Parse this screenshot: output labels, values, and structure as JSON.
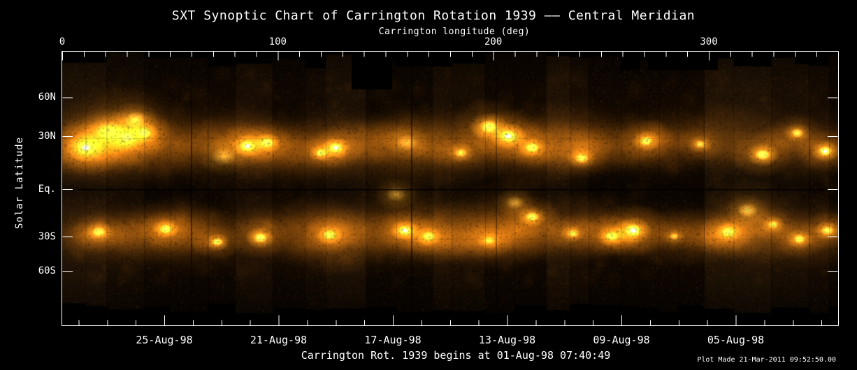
{
  "figure": {
    "title": "SXT Synoptic Chart of Carrington Rotation 1939 —— Central Meridian",
    "footer": "Carrington Rot. 1939 begins at 01-Aug-98 07:40:49",
    "plot_made": "Plot Made 21-Mar-2011 09:52:50.00"
  },
  "palette": {
    "background": "#000000",
    "axis": "#ffffff",
    "text": "#ffffff",
    "solar_base": "#100802",
    "solar_dim": "#6b3c08",
    "solar_mid": "#c87d14",
    "solar_bright": "#f5b942",
    "solar_core": "#fff3d0"
  },
  "chart_data": {
    "type": "heatmap",
    "title": "SXT Synoptic Chart of Carrington Rotation 1939 —— Central Meridian",
    "description": "Full-surface soft X-ray synoptic mosaic for Carrington rotation 1939; bright orange-gold patches are coronal active regions on a dark background, with a thin dark seam line along the solar equator and vertical seams between daily mosaic strips.",
    "x_axis_top": {
      "label": "Carrington longitude (deg)",
      "range": [
        0,
        360
      ],
      "major_ticks": [
        0,
        100,
        200,
        300
      ],
      "minor_tick_step": 10
    },
    "y_axis": {
      "label": "Solar Latitude",
      "ticks": [
        {
          "label": "60N",
          "lat": 60
        },
        {
          "label": "30N",
          "lat": 30
        },
        {
          "label": "Eq.",
          "lat": 0
        },
        {
          "label": "30S",
          "lat": -30
        },
        {
          "label": "60S",
          "lat": -60
        }
      ]
    },
    "x_axis_bottom": {
      "labels": [
        "25-Aug-98",
        "21-Aug-98",
        "17-Aug-98",
        "13-Aug-98",
        "09-Aug-98",
        "05-Aug-98"
      ],
      "minor_tick_interval_days": 1,
      "major_tick_interval_days": 4
    },
    "rotation_start": "01-Aug-98 07:40:49",
    "activity_bands": [
      {
        "hemisphere": "N",
        "lat_center": 25,
        "lat_spread": 8
      },
      {
        "hemisphere": "S",
        "lat_center": -28,
        "lat_spread": 7
      }
    ],
    "active_regions": [
      {
        "lon": 11,
        "lat": 23,
        "size": 16,
        "intensity": 1.0
      },
      {
        "lon": 22,
        "lat": 33,
        "size": 26,
        "intensity": 0.5
      },
      {
        "lon": 34,
        "lat": 41,
        "size": 20,
        "intensity": 0.5
      },
      {
        "lon": 30,
        "lat": 29,
        "size": 16,
        "intensity": 0.75
      },
      {
        "lon": 38,
        "lat": 32,
        "size": 12,
        "intensity": 0.8
      },
      {
        "lon": 75,
        "lat": 18,
        "size": 22,
        "intensity": 0.4
      },
      {
        "lon": 86,
        "lat": 24,
        "size": 13,
        "intensity": 0.9
      },
      {
        "lon": 95,
        "lat": 26,
        "size": 11,
        "intensity": 0.85
      },
      {
        "lon": 120,
        "lat": 20,
        "size": 10,
        "intensity": 0.7
      },
      {
        "lon": 127,
        "lat": 23,
        "size": 12,
        "intensity": 0.9
      },
      {
        "lon": 160,
        "lat": 26,
        "size": 20,
        "intensity": 0.35
      },
      {
        "lon": 185,
        "lat": 20,
        "size": 11,
        "intensity": 0.6
      },
      {
        "lon": 198,
        "lat": 36,
        "size": 16,
        "intensity": 0.85
      },
      {
        "lon": 207,
        "lat": 30,
        "size": 15,
        "intensity": 0.95
      },
      {
        "lon": 218,
        "lat": 23,
        "size": 12,
        "intensity": 0.8
      },
      {
        "lon": 241,
        "lat": 17,
        "size": 12,
        "intensity": 0.7
      },
      {
        "lon": 271,
        "lat": 27,
        "size": 12,
        "intensity": 0.75
      },
      {
        "lon": 296,
        "lat": 25,
        "size": 10,
        "intensity": 0.6
      },
      {
        "lon": 325,
        "lat": 19,
        "size": 13,
        "intensity": 0.85
      },
      {
        "lon": 341,
        "lat": 32,
        "size": 11,
        "intensity": 0.65
      },
      {
        "lon": 354,
        "lat": 21,
        "size": 12,
        "intensity": 0.9
      },
      {
        "lon": 17,
        "lat": -27,
        "size": 12,
        "intensity": 0.7
      },
      {
        "lon": 48,
        "lat": -25,
        "size": 11,
        "intensity": 0.8
      },
      {
        "lon": 72,
        "lat": -34,
        "size": 10,
        "intensity": 0.8
      },
      {
        "lon": 92,
        "lat": -31,
        "size": 12,
        "intensity": 0.85
      },
      {
        "lon": 124,
        "lat": -29,
        "size": 11,
        "intensity": 0.7
      },
      {
        "lon": 155,
        "lat": -3,
        "size": 18,
        "intensity": 0.45
      },
      {
        "lon": 159,
        "lat": -26,
        "size": 12,
        "intensity": 0.9
      },
      {
        "lon": 170,
        "lat": -30,
        "size": 11,
        "intensity": 0.7
      },
      {
        "lon": 198,
        "lat": -33,
        "size": 10,
        "intensity": 0.5
      },
      {
        "lon": 210,
        "lat": -8,
        "size": 16,
        "intensity": 0.45
      },
      {
        "lon": 218,
        "lat": -17,
        "size": 12,
        "intensity": 0.8
      },
      {
        "lon": 237,
        "lat": -28,
        "size": 10,
        "intensity": 0.6
      },
      {
        "lon": 255,
        "lat": -30,
        "size": 12,
        "intensity": 0.7
      },
      {
        "lon": 265,
        "lat": -26,
        "size": 15,
        "intensity": 1.0
      },
      {
        "lon": 284,
        "lat": -30,
        "size": 9,
        "intensity": 0.5
      },
      {
        "lon": 309,
        "lat": -27,
        "size": 11,
        "intensity": 0.8
      },
      {
        "lon": 318,
        "lat": -13,
        "size": 18,
        "intensity": 0.5
      },
      {
        "lon": 330,
        "lat": -22,
        "size": 10,
        "intensity": 0.6
      },
      {
        "lon": 342,
        "lat": -32,
        "size": 11,
        "intensity": 0.7
      },
      {
        "lon": 355,
        "lat": -26,
        "size": 11,
        "intensity": 0.75
      }
    ]
  }
}
